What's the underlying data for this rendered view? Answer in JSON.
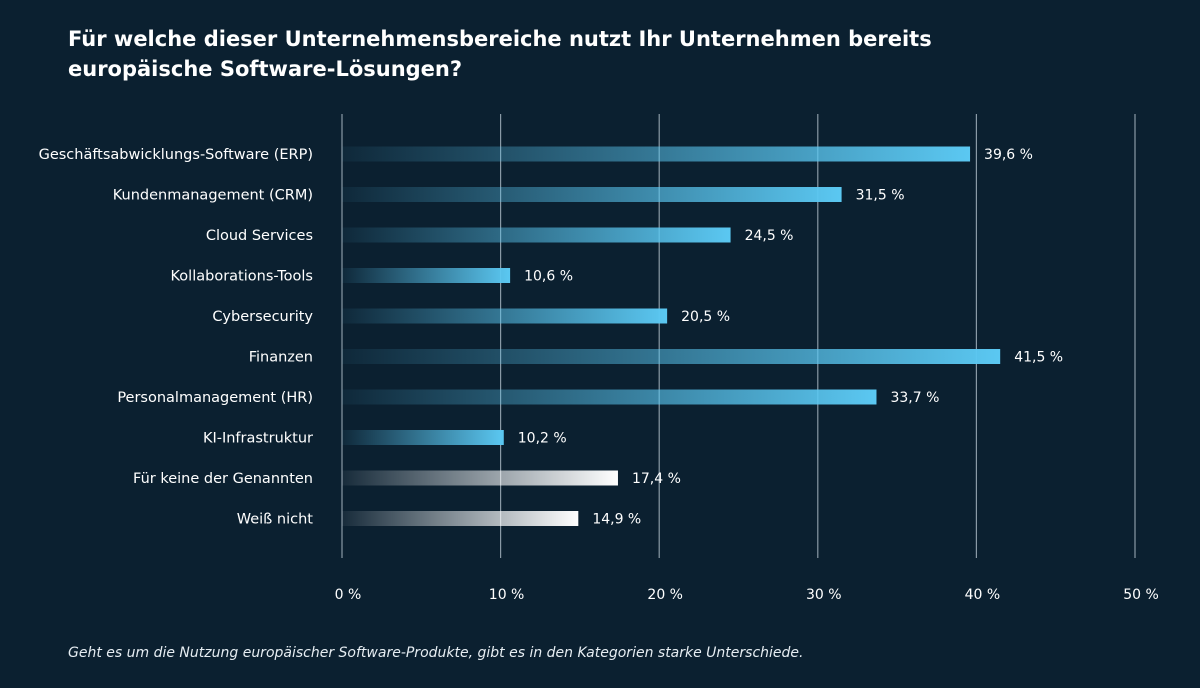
{
  "title": {
    "line1": "Für welche dieser Unternehmensbereiche nutzt Ihr Unternehmen bereits",
    "line2": "europäische Software-Lösungen?"
  },
  "caption": "Geht es um die Nutzung europäischer Software-Produkte, gibt es in den Kategorien starke Unterschiede.",
  "colors": {
    "background": "#0b2030",
    "bar_blue_end": "#5bc8f2",
    "bar_white_end": "#ffffff",
    "gridline": "#8a9aa6"
  },
  "chart_data": {
    "type": "bar",
    "orientation": "horizontal",
    "categories": [
      "Geschäftsabwicklungs-Software (ERP)",
      "Kundenmanagement (CRM)",
      "Cloud Services",
      "Kollaborations-Tools",
      "Cybersecurity",
      "Finanzen",
      "Personalmanagement (HR)",
      "KI-Infrastruktur",
      "Für keine der Genannten",
      "Weiß nicht"
    ],
    "values": [
      39.6,
      31.5,
      24.5,
      10.6,
      20.5,
      41.5,
      33.7,
      10.2,
      17.4,
      14.9
    ],
    "value_labels": [
      "39,6 %",
      "31,5 %",
      "24,5 %",
      "10,6 %",
      "20,5 %",
      "41,5 %",
      "33,7 %",
      "10,2 %",
      "17,4 %",
      "14,9 %"
    ],
    "bar_styles": [
      "blue",
      "blue",
      "blue",
      "blue",
      "blue",
      "blue",
      "blue",
      "blue",
      "white",
      "white"
    ],
    "xlim": [
      0,
      50
    ],
    "xticks": [
      0,
      10,
      20,
      30,
      40,
      50
    ],
    "xtick_labels": [
      "0 %",
      "10 %",
      "20 %",
      "30 %",
      "40 %",
      "50 %"
    ],
    "grid": true,
    "legend": "none"
  }
}
